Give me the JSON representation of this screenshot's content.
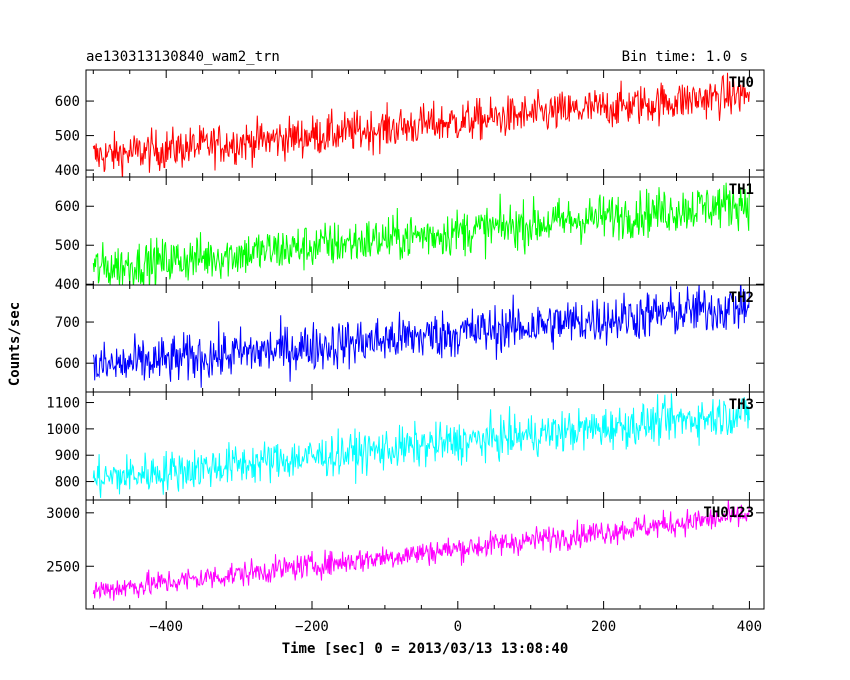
{
  "header": {
    "title": "ae130313130840_wam2_trn",
    "bin_time": "Bin time: 1.0 s"
  },
  "chart_data": {
    "type": "line",
    "xlabel": "Time [sec] 0 = 2013/03/13 13:08:40",
    "ylabel": "Counts/sec",
    "xlim": [
      -510,
      420
    ],
    "xticks": [
      -400,
      -200,
      0,
      200,
      400
    ],
    "x_start": -500,
    "x_end": 400,
    "x_step": 1,
    "grid": false,
    "panels": [
      {
        "name": "TH0",
        "color": "#ff0000",
        "ylim": [
          380,
          690
        ],
        "yticks": [
          400,
          500,
          600
        ],
        "start_value": 440,
        "end_value": 620,
        "noise": 30
      },
      {
        "name": "TH1",
        "color": "#00ff00",
        "ylim": [
          398,
          675
        ],
        "yticks": [
          400,
          500,
          600
        ],
        "start_value": 440,
        "end_value": 610,
        "noise": 30
      },
      {
        "name": "TH2",
        "color": "#0000ff",
        "ylim": [
          530,
          790
        ],
        "yticks": [
          600,
          700
        ],
        "start_value": 590,
        "end_value": 740,
        "noise": 30
      },
      {
        "name": "TH3",
        "color": "#00ffff",
        "ylim": [
          730,
          1140
        ],
        "yticks": [
          800,
          900,
          1000,
          1100
        ],
        "start_value": 810,
        "end_value": 1060,
        "noise": 40
      },
      {
        "name": "TH0123",
        "color": "#ff00ff",
        "ylim": [
          2100,
          3120
        ],
        "yticks": [
          2500,
          3000
        ],
        "start_value": 2270,
        "end_value": 2980,
        "noise": 60
      }
    ]
  }
}
